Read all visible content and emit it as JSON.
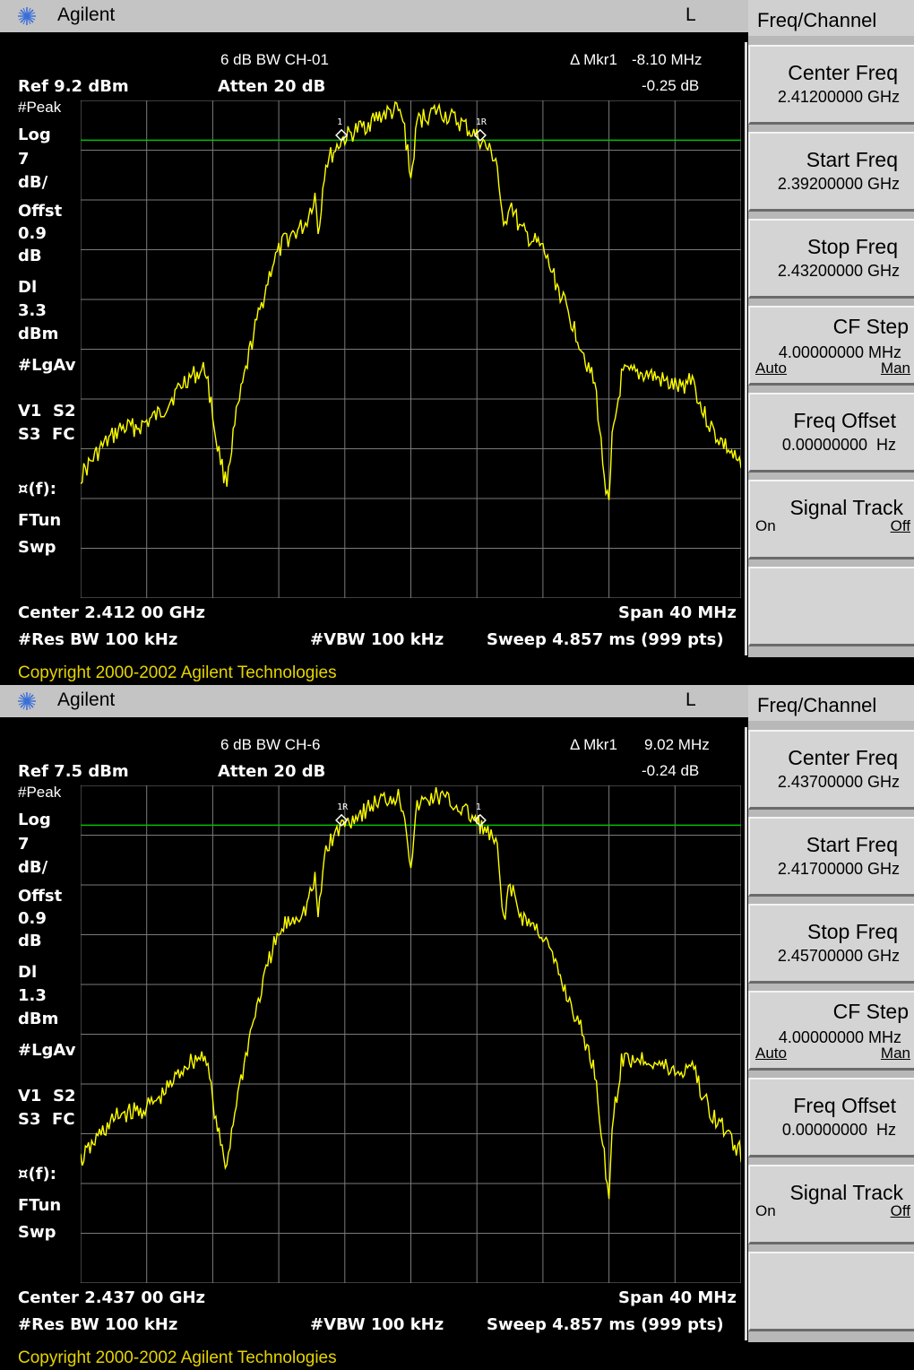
{
  "brand": "Agilent",
  "attenuation_mode": "L",
  "copyright": "Copyright 2000-2002 Agilent Technologies",
  "colors": {
    "trace": "#ffff00",
    "display_line": "#00c000",
    "graticule": "#7a7a7a",
    "background": "#000000"
  },
  "panels": [
    {
      "title": "6 dB BW CH-01",
      "ref_level": "Ref 9.2 dBm",
      "atten": "Atten 20 dB",
      "marker_label": "Δ Mkr1",
      "marker_freq": "-8.10 MHz",
      "marker_delta": "-0.25 dB",
      "left_annotations": [
        "#Peak",
        "Log",
        "7",
        "dB/",
        "Offst",
        "0.9",
        "dB",
        "Dl",
        "3.3",
        "dBm",
        "#LgAv",
        "V1  S2",
        "S3  FC",
        "¤(f):",
        "FTun",
        "Swp"
      ],
      "center": "Center 2.412 00 GHz",
      "span": "Span 40 MHz",
      "rbw": "#Res BW 100 kHz",
      "vbw": "#VBW 100 kHz",
      "sweep": "Sweep 4.857 ms (999 pts)",
      "marker_tags": {
        "left": "1",
        "right": "1R"
      },
      "softkeys": {
        "menu_title": "Freq/Channel",
        "center_freq": {
          "label": "Center Freq",
          "value": "2.41200000 GHz"
        },
        "start_freq": {
          "label": "Start Freq",
          "value": "2.39200000 GHz"
        },
        "stop_freq": {
          "label": "Stop Freq",
          "value": "2.43200000 GHz"
        },
        "cf_step": {
          "label": "CF Step",
          "value": "4.00000000 MHz",
          "opt_auto": "Auto",
          "opt_man": "Man"
        },
        "freq_offset": {
          "label": "Freq Offset",
          "value": "0.00000000  Hz"
        },
        "signal_track": {
          "label": "Signal Track",
          "opt_on": "On",
          "opt_off": "Off"
        }
      }
    },
    {
      "title": "6 dB BW CH-6",
      "ref_level": "Ref 7.5 dBm",
      "atten": "Atten 20 dB",
      "marker_label": "Δ Mkr1",
      "marker_freq": "9.02 MHz",
      "marker_delta": "-0.24 dB",
      "left_annotations": [
        "#Peak",
        "Log",
        "7",
        "dB/",
        "Offst",
        "0.9",
        "dB",
        "Dl",
        "1.3",
        "dBm",
        "#LgAv",
        "V1  S2",
        "S3  FC",
        "¤(f):",
        "FTun",
        "Swp"
      ],
      "center": "Center 2.437 00 GHz",
      "span": "Span 40 MHz",
      "rbw": "#Res BW 100 kHz",
      "vbw": "#VBW 100 kHz",
      "sweep": "Sweep 4.857 ms (999 pts)",
      "marker_tags": {
        "left": "1R",
        "right": "1"
      },
      "softkeys": {
        "menu_title": "Freq/Channel",
        "center_freq": {
          "label": "Center Freq",
          "value": "2.43700000 GHz"
        },
        "start_freq": {
          "label": "Start Freq",
          "value": "2.41700000 GHz"
        },
        "stop_freq": {
          "label": "Stop Freq",
          "value": "2.45700000 GHz"
        },
        "cf_step": {
          "label": "CF Step",
          "value": "4.00000000 MHz",
          "opt_auto": "Auto",
          "opt_man": "Man"
        },
        "freq_offset": {
          "label": "Freq Offset",
          "value": "0.00000000  Hz"
        },
        "signal_track": {
          "label": "Signal Track",
          "opt_on": "On",
          "opt_off": "Off"
        }
      }
    }
  ]
}
